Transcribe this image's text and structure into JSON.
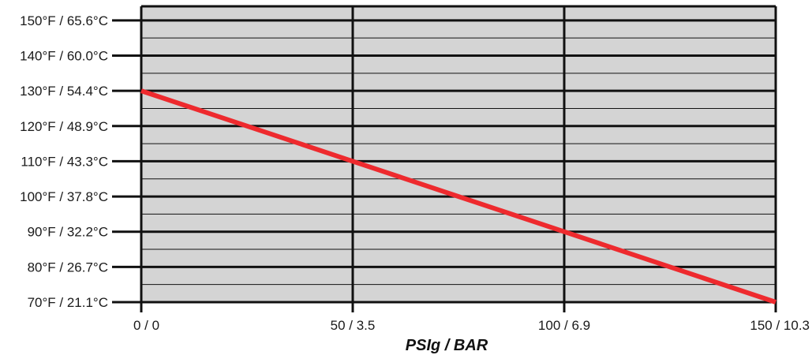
{
  "chart_data": {
    "type": "line",
    "title": "",
    "xlabel": "PSIg / BAR",
    "ylabel": "",
    "x_ticks": [
      {
        "value": 0,
        "label": "0 / 0"
      },
      {
        "value": 50,
        "label": "50 / 3.5"
      },
      {
        "value": 100,
        "label": "100 / 6.9"
      },
      {
        "value": 150,
        "label": "150 / 10.3"
      }
    ],
    "y_ticks": [
      {
        "value": 70,
        "label": "70°F / 21.1°C"
      },
      {
        "value": 80,
        "label": "80°F / 26.7°C"
      },
      {
        "value": 90,
        "label": "90°F / 32.2°C"
      },
      {
        "value": 100,
        "label": "100°F / 37.8°C"
      },
      {
        "value": 110,
        "label": "110°F / 43.3°C"
      },
      {
        "value": 120,
        "label": "120°F / 48.9°C"
      },
      {
        "value": 130,
        "label": "130°F / 54.4°C"
      },
      {
        "value": 140,
        "label": "140°F / 60.0°C"
      },
      {
        "value": 150,
        "label": "150°F / 65.6°C"
      }
    ],
    "xlim": [
      0,
      150
    ],
    "ylim": [
      70,
      154
    ],
    "grid": true,
    "minor_grid_step": 5,
    "series": [
      {
        "x": [
          0,
          50,
          100,
          150
        ],
        "y": [
          130,
          110,
          90,
          70
        ],
        "color": "#ee2a2e"
      }
    ],
    "colors": {
      "plot_background": "#d4d4d4",
      "grid": "#111111",
      "line": "#ee2a2e"
    }
  }
}
